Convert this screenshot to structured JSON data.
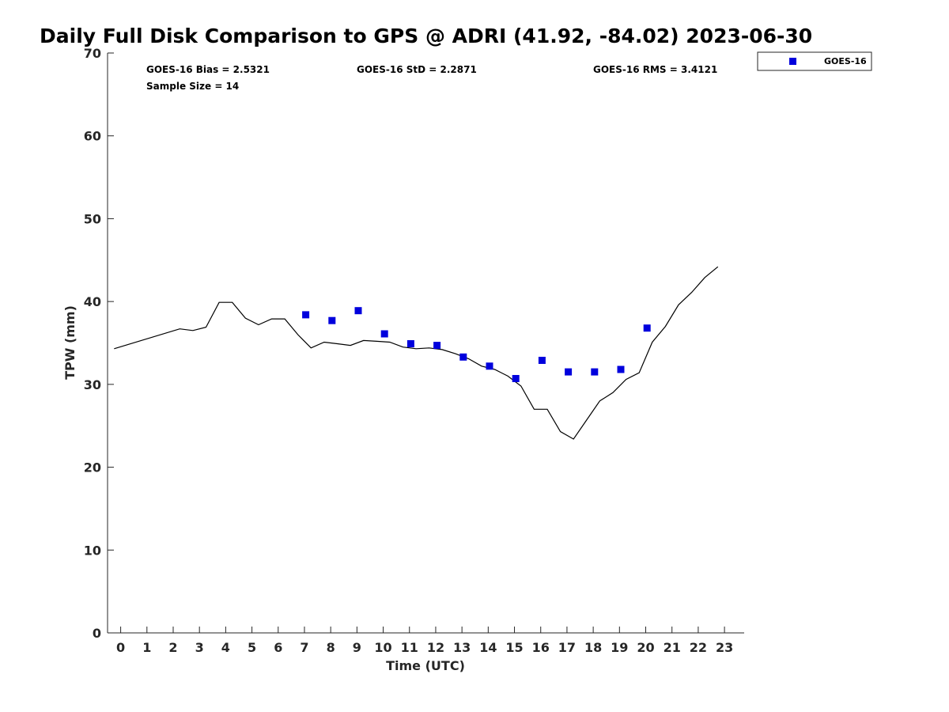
{
  "chart_data": {
    "type": "scatter",
    "title": "Daily Full Disk Comparison to GPS @ ADRI (41.92, -84.02) 2023-06-30",
    "xlabel": "Time (UTC)",
    "ylabel": "TPW (mm)",
    "xlim": [
      -0.5,
      23.75
    ],
    "ylim": [
      0,
      70
    ],
    "xticks": [
      0,
      1,
      2,
      3,
      4,
      5,
      6,
      7,
      8,
      9,
      10,
      11,
      12,
      13,
      14,
      15,
      16,
      17,
      18,
      19,
      20,
      21,
      22,
      23
    ],
    "yticks": [
      0,
      10,
      20,
      30,
      40,
      50,
      60,
      70
    ],
    "grid": false,
    "legend_position": "top-right",
    "stats": {
      "bias": "GOES-16 Bias = 2.5321",
      "std": "GOES-16 StD = 2.2871",
      "rms": "GOES-16 RMS = 3.4121",
      "sample": "Sample Size = 14"
    },
    "gps_line": {
      "color": "#000000",
      "x": [
        -0.25,
        2.25,
        2.75,
        3.25,
        3.75,
        4.25,
        4.75,
        5.25,
        5.75,
        6.25,
        6.75,
        7.25,
        7.75,
        8.25,
        8.75,
        9.25,
        9.75,
        10.25,
        10.75,
        11.25,
        11.75,
        12.25,
        12.75,
        13.25,
        13.75,
        14.25,
        14.75,
        15.25,
        15.75,
        16.25,
        16.75,
        17.25,
        17.75,
        18.25,
        18.75,
        19.25,
        19.75,
        20.25,
        20.75,
        21.25,
        21.75,
        22.25,
        22.75
      ],
      "y": [
        34.3,
        36.7,
        36.5,
        36.9,
        39.9,
        39.9,
        38.0,
        37.2,
        37.9,
        37.9,
        36.0,
        34.4,
        35.1,
        34.9,
        34.7,
        35.3,
        35.2,
        35.1,
        34.5,
        34.3,
        34.4,
        34.2,
        33.7,
        33.1,
        32.2,
        31.8,
        31.0,
        29.8,
        27.0,
        27.0,
        24.3,
        23.4,
        25.7,
        28.0,
        29.0,
        30.6,
        31.4,
        35.1,
        37.0,
        39.6,
        41.1,
        42.9,
        44.2
      ]
    },
    "series": [
      {
        "name": "GOES-16",
        "color": "#0000dd",
        "x": [
          7.05,
          8.05,
          9.05,
          10.05,
          11.05,
          12.05,
          13.05,
          14.05,
          15.05,
          16.05,
          17.05,
          18.05,
          19.05,
          20.05
        ],
        "y": [
          38.4,
          37.7,
          38.9,
          36.1,
          34.9,
          34.7,
          33.3,
          32.2,
          30.7,
          32.9,
          31.5,
          31.5,
          31.8,
          36.8
        ]
      }
    ]
  }
}
